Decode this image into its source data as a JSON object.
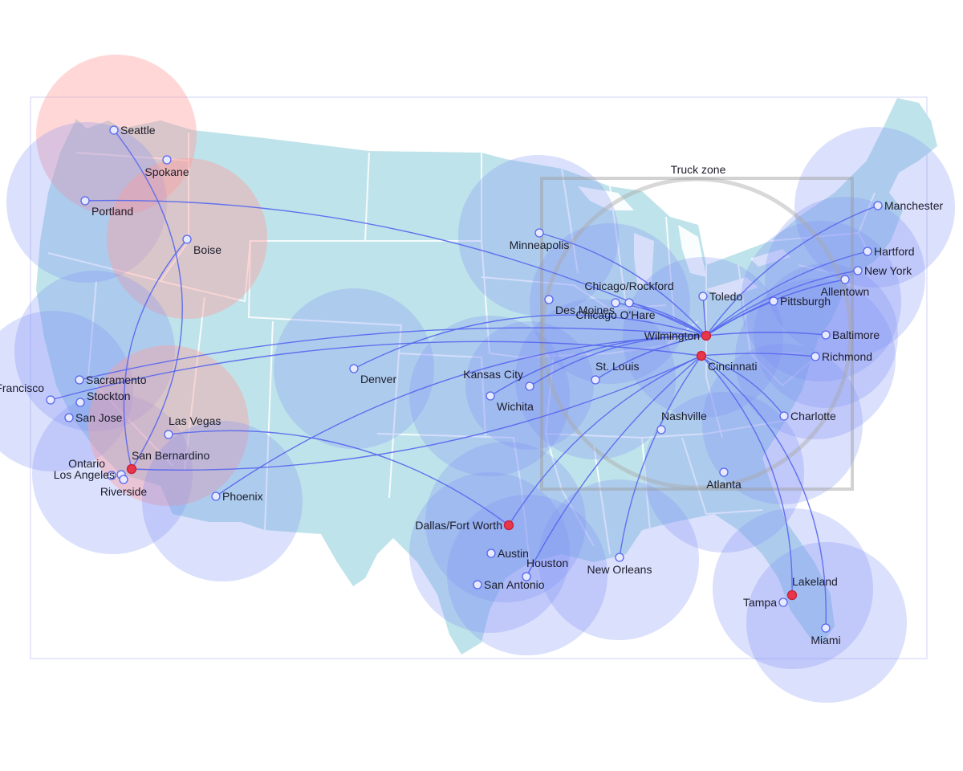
{
  "truck_zone": {
    "label": "Truck zone"
  },
  "colors": {
    "land": "#bfe3ea",
    "coverage_blue": "#7f8ff5",
    "coverage_red": "#ff9a9a",
    "route": "#5566ee",
    "hub": "#e8364a",
    "node_fill": "#e7e9ff",
    "node_stroke": "#5566ee"
  },
  "hubs": [
    {
      "id": "san-bernardino",
      "label": "San Bernardino"
    },
    {
      "id": "wilmington",
      "label": "Wilmington"
    },
    {
      "id": "cincinnati",
      "label": "Cincinnati"
    },
    {
      "id": "dallas-fort-worth",
      "label": "Dallas/Fort Worth"
    },
    {
      "id": "lakeland",
      "label": "Lakeland"
    }
  ],
  "cities": [
    {
      "id": "seattle",
      "label": "Seattle"
    },
    {
      "id": "spokane",
      "label": "Spokane"
    },
    {
      "id": "portland",
      "label": "Portland"
    },
    {
      "id": "boise",
      "label": "Boise"
    },
    {
      "id": "sacramento",
      "label": "Sacramento"
    },
    {
      "id": "san-francisco",
      "label": "San Francisco"
    },
    {
      "id": "stockton",
      "label": "Stockton"
    },
    {
      "id": "san-jose",
      "label": "San Jose"
    },
    {
      "id": "las-vegas",
      "label": "Las Vegas"
    },
    {
      "id": "ontario",
      "label": "Ontario"
    },
    {
      "id": "los-angeles",
      "label": "Los Angeles"
    },
    {
      "id": "riverside",
      "label": "Riverside"
    },
    {
      "id": "phoenix",
      "label": "Phoenix"
    },
    {
      "id": "denver",
      "label": "Denver"
    },
    {
      "id": "kansas-city",
      "label": "Kansas City"
    },
    {
      "id": "wichita",
      "label": "Wichita"
    },
    {
      "id": "minneapolis",
      "label": "Minneapolis"
    },
    {
      "id": "des-moines",
      "label": "Des Moines"
    },
    {
      "id": "chicago-rockford",
      "label": "Chicago/Rockford"
    },
    {
      "id": "chicago-ohare",
      "label": "Chicago O'Hare"
    },
    {
      "id": "toledo",
      "label": "Toledo"
    },
    {
      "id": "st-louis",
      "label": "St. Louis"
    },
    {
      "id": "nashville",
      "label": "Nashville"
    },
    {
      "id": "atlanta",
      "label": "Atlanta"
    },
    {
      "id": "austin",
      "label": "Austin"
    },
    {
      "id": "houston",
      "label": "Houston"
    },
    {
      "id": "san-antonio",
      "label": "San Antonio"
    },
    {
      "id": "new-orleans",
      "label": "New Orleans"
    },
    {
      "id": "tampa",
      "label": "Tampa"
    },
    {
      "id": "miami",
      "label": "Miami"
    },
    {
      "id": "charlotte",
      "label": "Charlotte"
    },
    {
      "id": "richmond",
      "label": "Richmond"
    },
    {
      "id": "baltimore",
      "label": "Baltimore"
    },
    {
      "id": "pittsburgh",
      "label": "Pittsburgh"
    },
    {
      "id": "allentown",
      "label": "Allentown"
    },
    {
      "id": "new-york",
      "label": "New York"
    },
    {
      "id": "hartford",
      "label": "Hartford"
    },
    {
      "id": "manchester",
      "label": "Manchester"
    }
  ]
}
